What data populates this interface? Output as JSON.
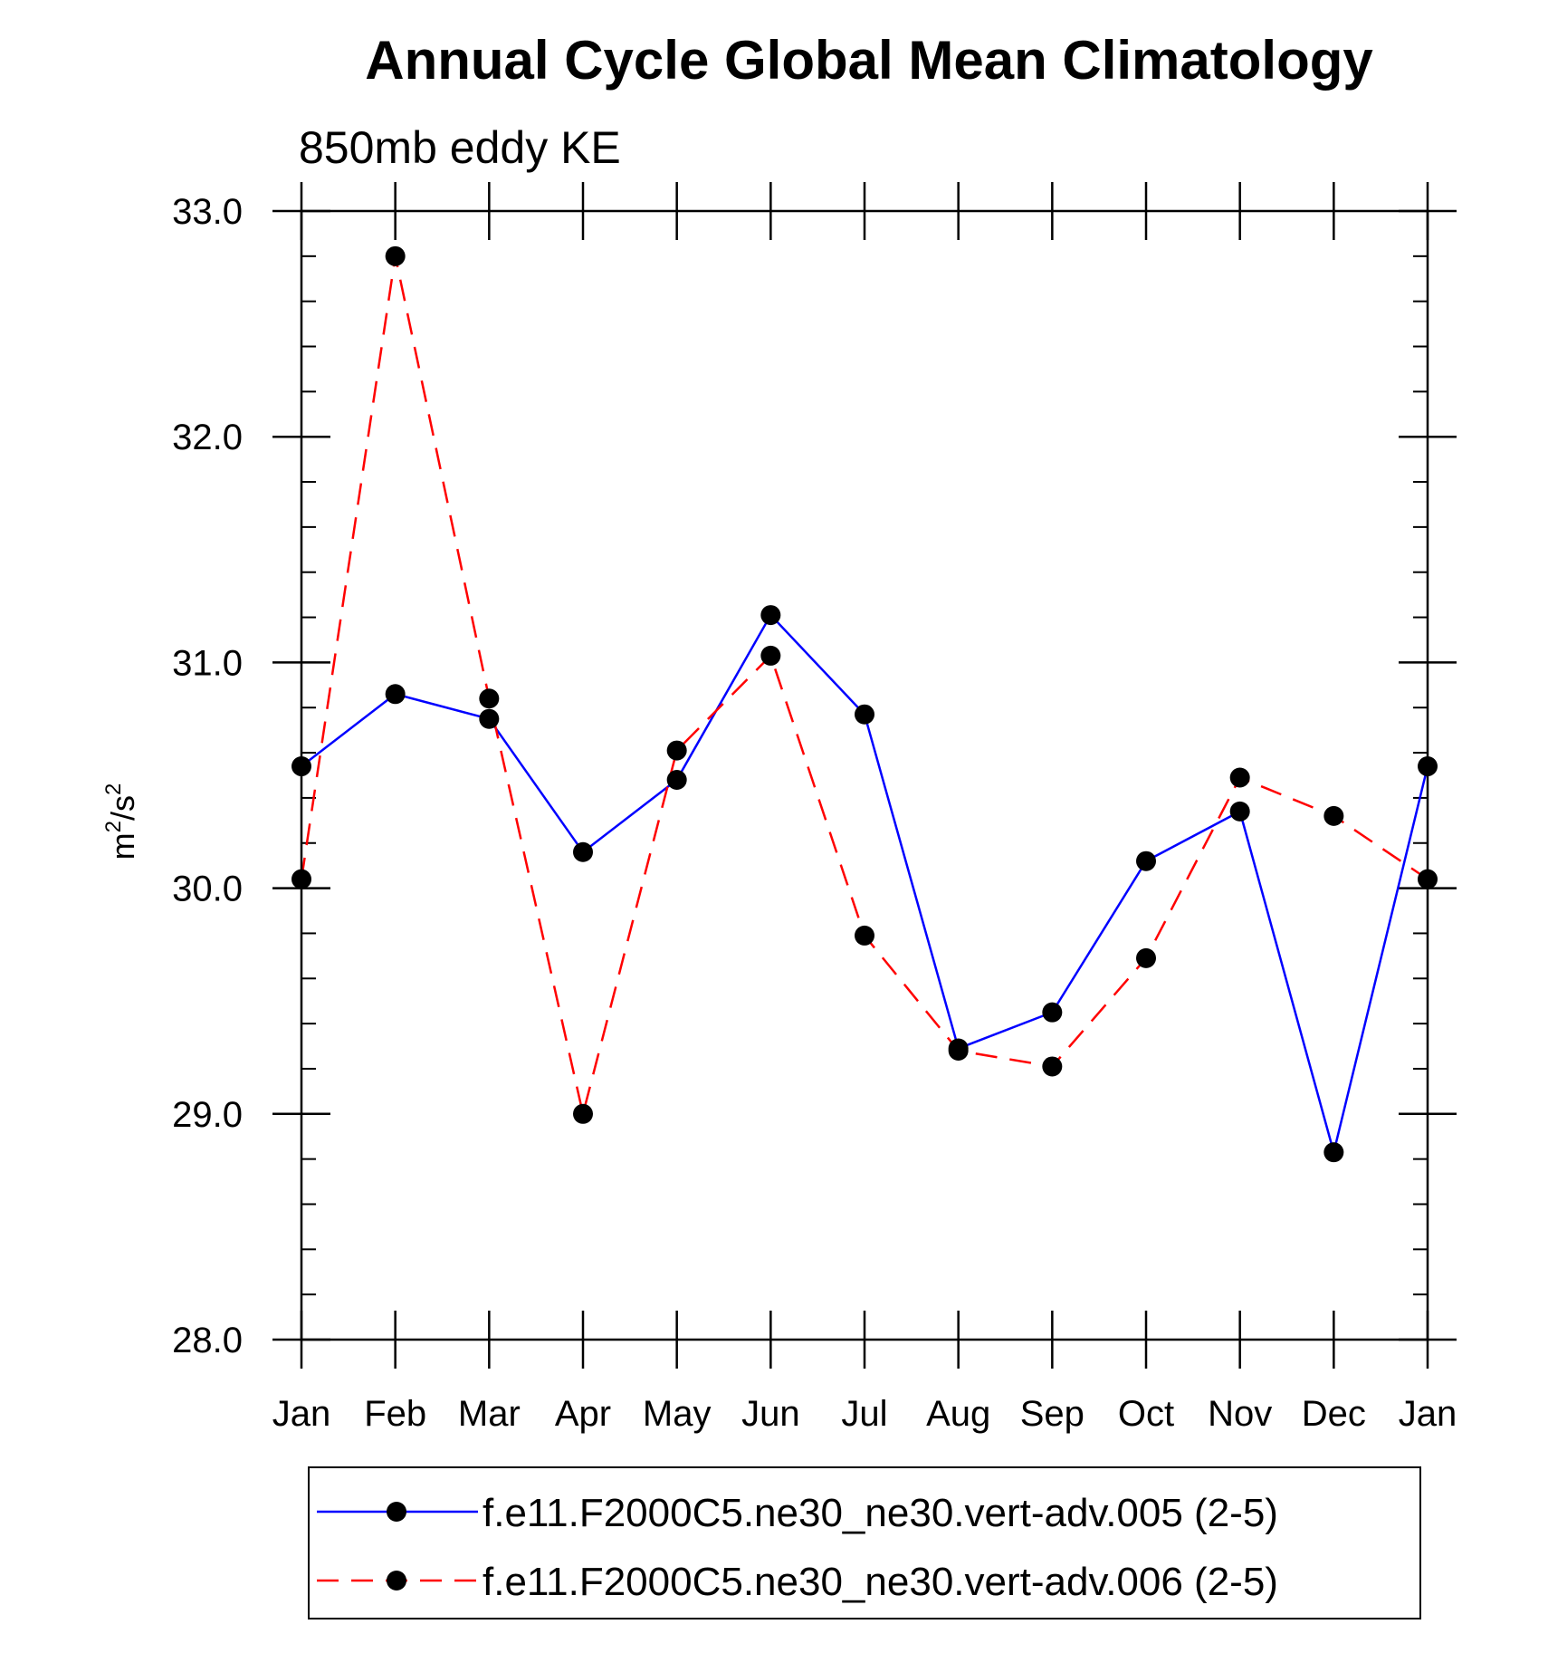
{
  "chart_data": {
    "type": "line",
    "title": "Annual Cycle Global Mean Climatology",
    "subtitle": "850mb eddy KE",
    "ylabel_base": "m",
    "ylabel_exp1": "2",
    "ylabel_mid": "/s",
    "ylabel_exp2": "2",
    "xlabel": "",
    "ylim": [
      28.0,
      33.0
    ],
    "ymajor_ticks": [
      28.0,
      29.0,
      30.0,
      31.0,
      32.0,
      33.0
    ],
    "ytick_labels": [
      "28.0",
      "29.0",
      "30.0",
      "31.0",
      "32.0",
      "33.0"
    ],
    "yminor_step": 0.2,
    "categories": [
      "Jan",
      "Feb",
      "Mar",
      "Apr",
      "May",
      "Jun",
      "Jul",
      "Aug",
      "Sep",
      "Oct",
      "Nov",
      "Dec",
      "Jan"
    ],
    "series": [
      {
        "name": "f.e11.F2000C5.ne30_ne30.vert-adv.005 (2-5)",
        "color": "#0000ff",
        "dash": "solid",
        "values": [
          30.54,
          30.86,
          30.75,
          30.16,
          30.48,
          31.21,
          30.77,
          29.29,
          29.45,
          30.12,
          30.34,
          28.83,
          30.54
        ]
      },
      {
        "name": "f.e11.F2000C5.ne30_ne30.vert-adv.006 (2-5)",
        "color": "#ff0000",
        "dash": "dashed",
        "values": [
          30.04,
          32.8,
          30.84,
          29.0,
          30.61,
          31.03,
          29.79,
          29.28,
          29.21,
          29.69,
          30.49,
          30.32,
          30.04
        ]
      }
    ],
    "legend_position": "bottom-center",
    "marker_color": "#000000"
  }
}
